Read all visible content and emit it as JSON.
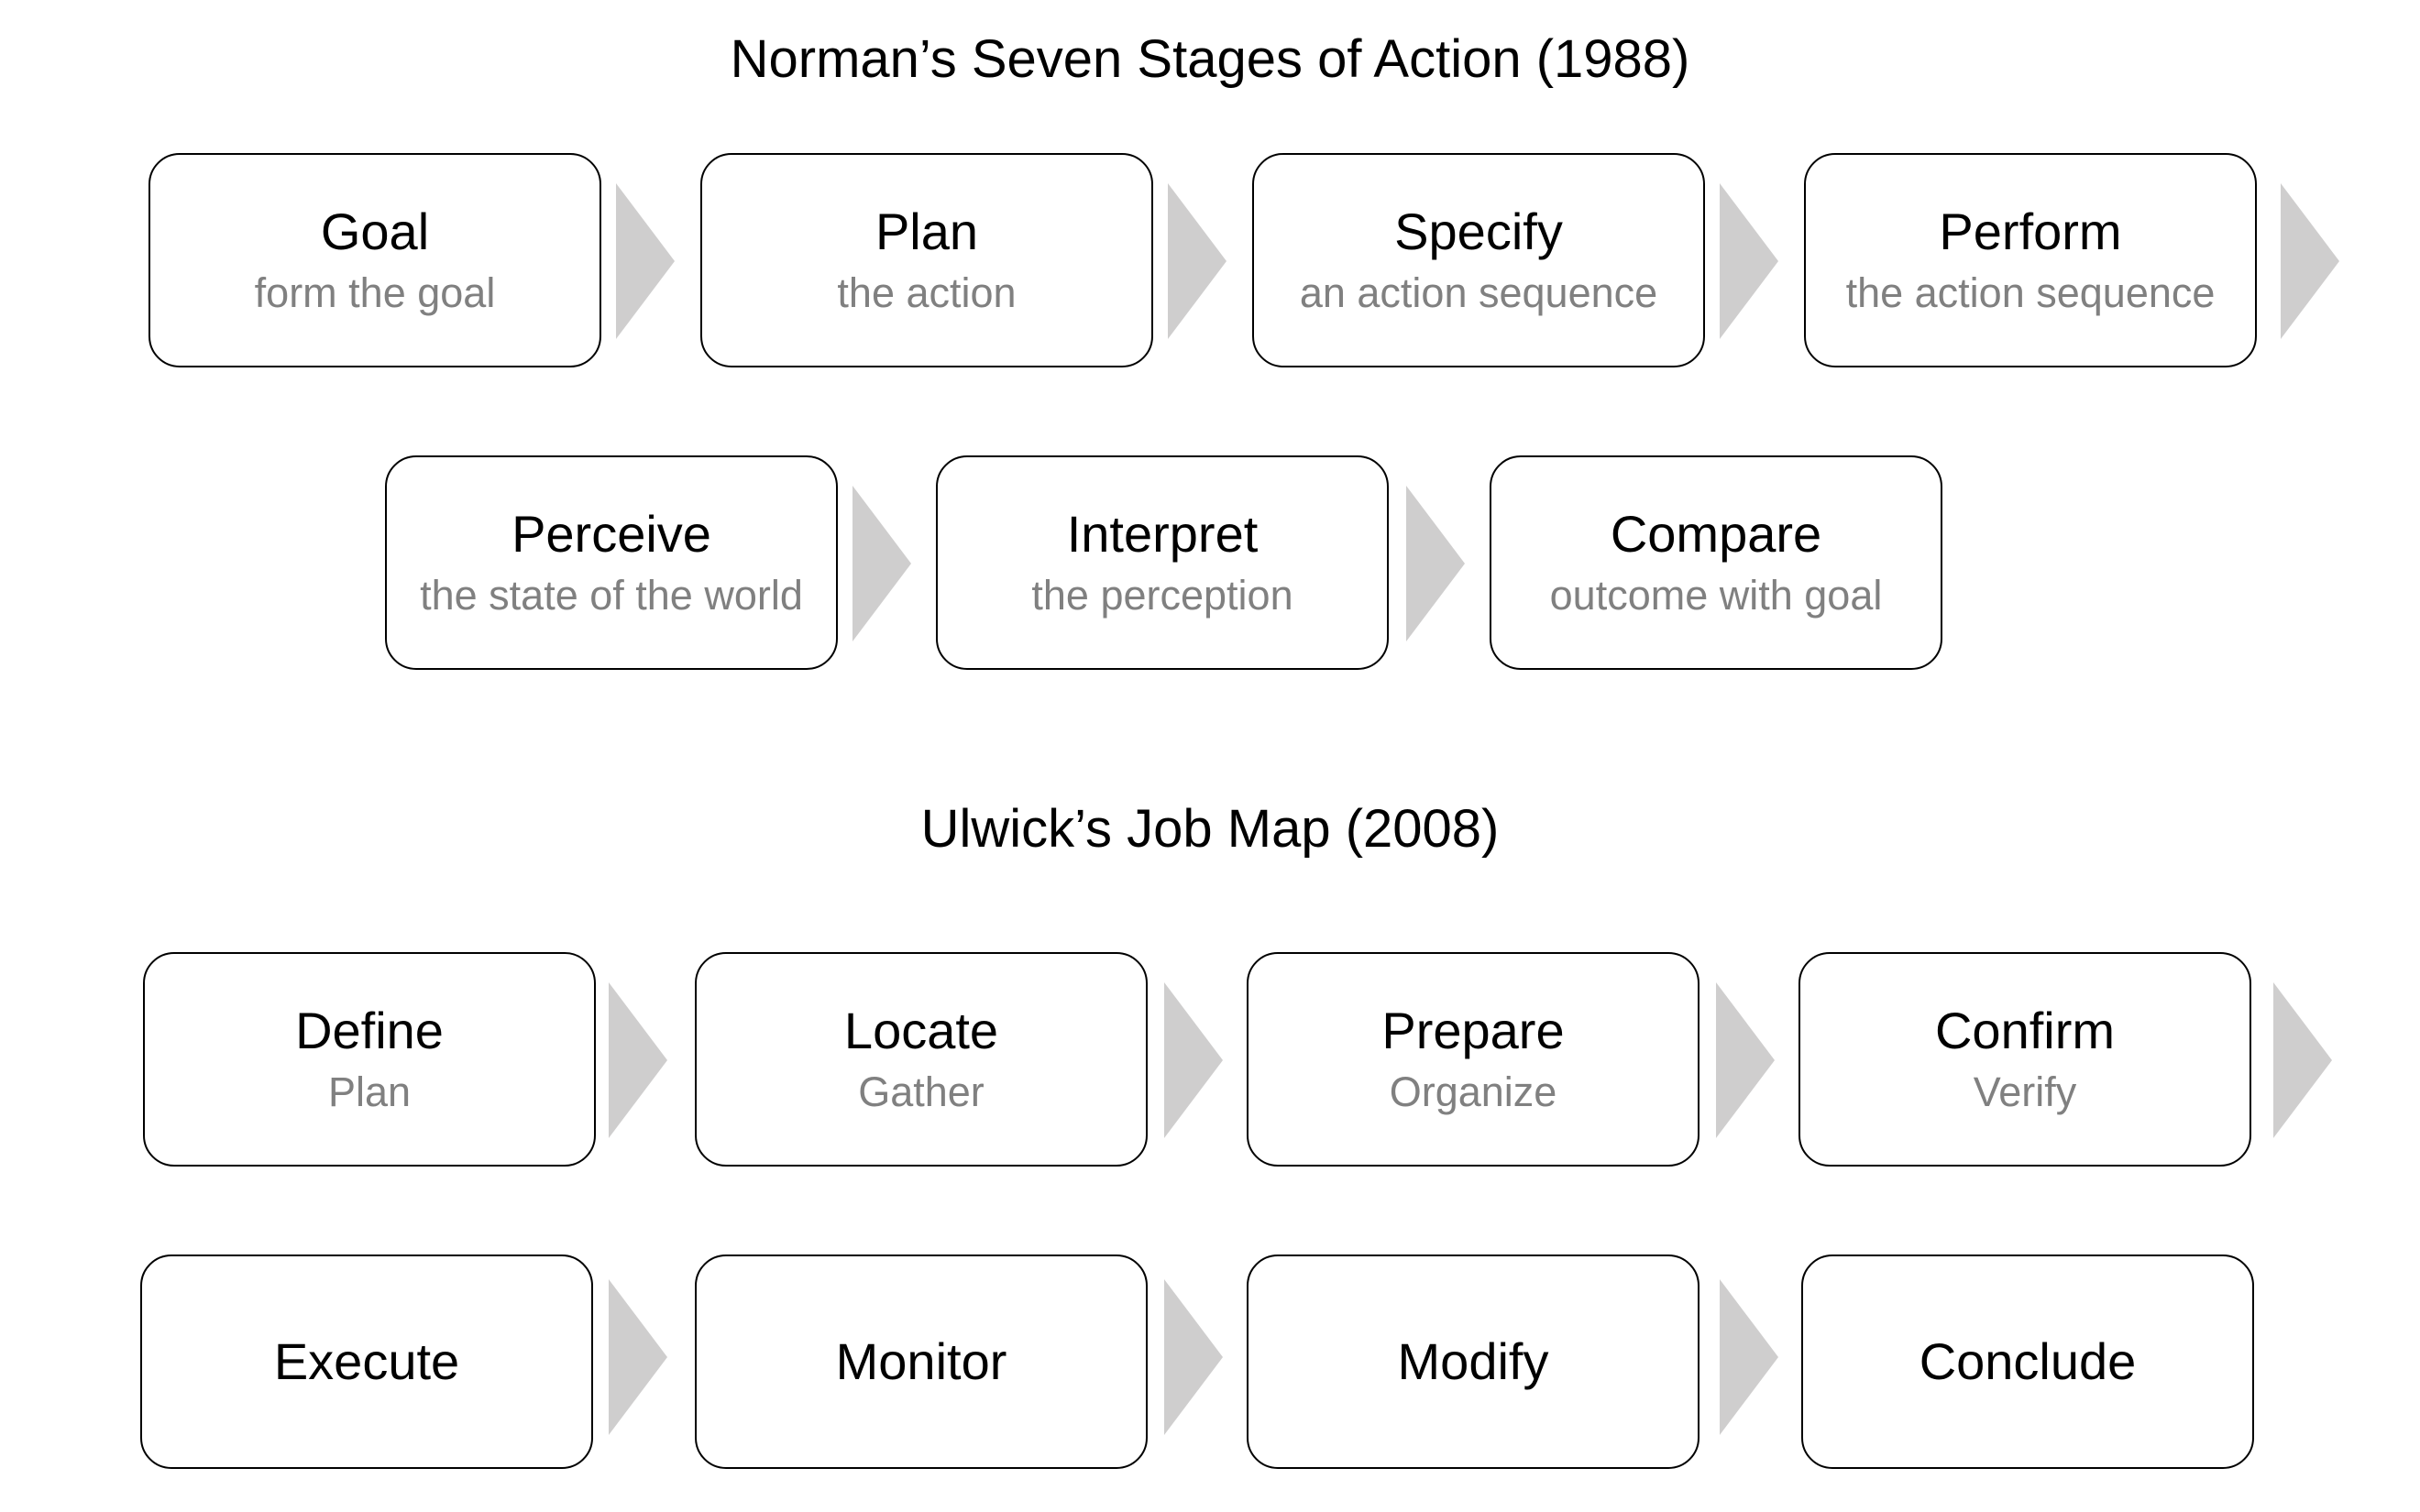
{
  "norman": {
    "title": "Norman’s Seven Stages of Action (1988)",
    "stages": [
      {
        "label": "Goal",
        "sub": "form the goal"
      },
      {
        "label": "Plan",
        "sub": "the action"
      },
      {
        "label": "Specify",
        "sub": "an action sequence"
      },
      {
        "label": "Perform",
        "sub": "the action sequence"
      },
      {
        "label": "Perceive",
        "sub": "the state of the world"
      },
      {
        "label": "Interpret",
        "sub": "the perception"
      },
      {
        "label": "Compare",
        "sub": "outcome with goal"
      }
    ]
  },
  "ulwick": {
    "title": "Ulwick’s Job Map (2008)",
    "steps": [
      {
        "label": "Define",
        "sub": "Plan"
      },
      {
        "label": "Locate",
        "sub": "Gather"
      },
      {
        "label": "Prepare",
        "sub": "Organize"
      },
      {
        "label": "Confirm",
        "sub": "Verify"
      },
      {
        "label": "Execute"
      },
      {
        "label": "Monitor"
      },
      {
        "label": "Modify"
      },
      {
        "label": "Conclude"
      }
    ]
  },
  "colors": {
    "box_border": "#000000",
    "subtitle_text": "#808080",
    "arrow_fill": "#cfcece"
  },
  "icons": {
    "arrow": "chevron-right-icon"
  }
}
